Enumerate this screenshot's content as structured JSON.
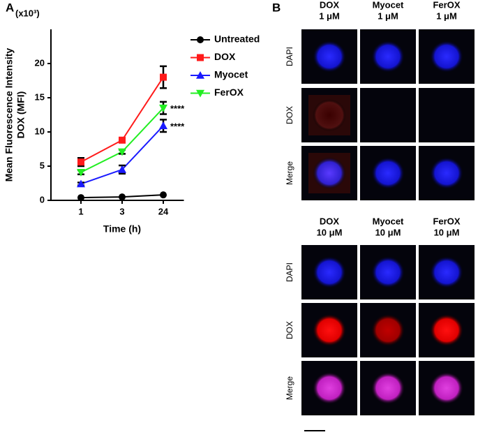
{
  "panel_labels": [
    "A",
    "B"
  ],
  "chart_data": {
    "type": "line",
    "annotation_scale": "(x10³)",
    "ylabel": [
      "Mean Fluorescence Intensity",
      "DOX (MFI)"
    ],
    "xlabel": "Time (h)",
    "categories": [
      "1",
      "3",
      "24"
    ],
    "ylim": [
      0,
      25
    ],
    "yticks": [
      0,
      5,
      10,
      15,
      20
    ],
    "legend": "upper right",
    "series": [
      {
        "name": "Untreated",
        "color": "#000000",
        "marker": "circle",
        "values": [
          0.4,
          0.5,
          0.8
        ]
      },
      {
        "name": "DOX",
        "color": "#ff1a1a",
        "marker": "square",
        "values": [
          5.6,
          8.8,
          18.0
        ],
        "errors": [
          0.6,
          0.3,
          1.6
        ]
      },
      {
        "name": "Myocet",
        "color": "#1a1aff",
        "marker": "triangle-up",
        "values": [
          2.4,
          4.5,
          10.9
        ],
        "errors": [
          0.2,
          0.6,
          0.9
        ]
      },
      {
        "name": "FerOX",
        "color": "#22ee22",
        "marker": "triangle-down",
        "values": [
          4.1,
          7.1,
          13.5
        ],
        "errors": [
          0.3,
          0.3,
          0.9
        ]
      }
    ],
    "annotations": [
      {
        "text": "****",
        "series": 3,
        "index": 2
      },
      {
        "text": "****",
        "series": 2,
        "index": 2
      }
    ]
  },
  "microscopy": {
    "groups": [
      {
        "columns": [
          {
            "name": "DOX",
            "dose": "1 μM"
          },
          {
            "name": "Myocet",
            "dose": "1 μM"
          },
          {
            "name": "FerOX",
            "dose": "1 μM"
          }
        ],
        "rows": [
          "DAPI",
          "DOX",
          "Merge"
        ]
      },
      {
        "columns": [
          {
            "name": "DOX",
            "dose": "10 μM"
          },
          {
            "name": "Myocet",
            "dose": "10 μM"
          },
          {
            "name": "FerOX",
            "dose": "10 μM"
          }
        ],
        "rows": [
          "DAPI",
          "DOX",
          "Merge"
        ]
      }
    ]
  }
}
